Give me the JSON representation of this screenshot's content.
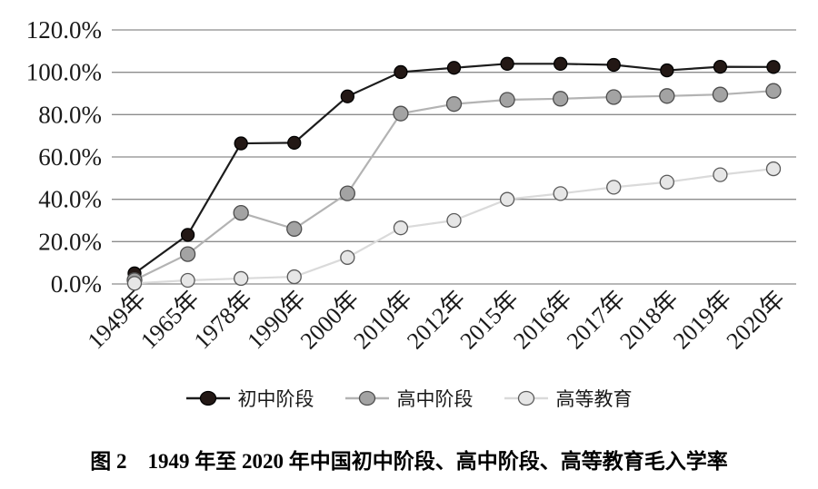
{
  "figure": {
    "caption": "图 2　1949 年至 2020 年中国初中阶段、高中阶段、高等教育毛入学率"
  },
  "chart_data": {
    "type": "line",
    "title": "图2 1949年至2020年中国初中阶段、高中阶段、高等教育毛入学率",
    "categories": [
      "1949年",
      "1965年",
      "1978年",
      "1990年",
      "2000年",
      "2010年",
      "2012年",
      "2015年",
      "2016年",
      "2017年",
      "2018年",
      "2019年",
      "2020年"
    ],
    "series": [
      {
        "name": "初中阶段",
        "values": [
          5.0,
          23.2,
          66.4,
          66.7,
          88.6,
          100.1,
          102.1,
          104.0,
          104.0,
          103.5,
          100.9,
          102.6,
          102.5
        ],
        "line_color": "#1c1c1c",
        "marker_fill": "#231815",
        "marker_stroke": "#000000",
        "marker_radius": 7
      },
      {
        "name": "高中阶段",
        "values": [
          1.8,
          14.1,
          33.6,
          26.0,
          42.8,
          80.5,
          85.0,
          87.0,
          87.5,
          88.3,
          88.8,
          89.5,
          91.2
        ],
        "line_color": "#b3b3b3",
        "marker_fill": "#a3a3a3",
        "marker_stroke": "#4d4d4d",
        "marker_radius": 8
      },
      {
        "name": "高等教育",
        "values": [
          0.3,
          1.7,
          2.6,
          3.4,
          12.5,
          26.5,
          30.0,
          40.0,
          42.7,
          45.7,
          48.1,
          51.6,
          54.4
        ],
        "line_color": "#dadada",
        "marker_fill": "#e6e6e6",
        "marker_stroke": "#5a5a5a",
        "marker_radius": 7.5
      }
    ],
    "xlabel": "",
    "ylabel": "",
    "ylim": [
      0,
      120
    ],
    "y_ticks": [
      "120.0%",
      "100.0%",
      "80.0%",
      "60.0%",
      "40.0%",
      "20.0%",
      "0.0%"
    ],
    "y_tick_values": [
      120,
      100,
      80,
      60,
      40,
      20,
      0
    ],
    "grid": "horizontal",
    "grid_color": "#8c8c8c",
    "axis_text_color": "#1a1a1a",
    "legend_position": "bottom"
  }
}
